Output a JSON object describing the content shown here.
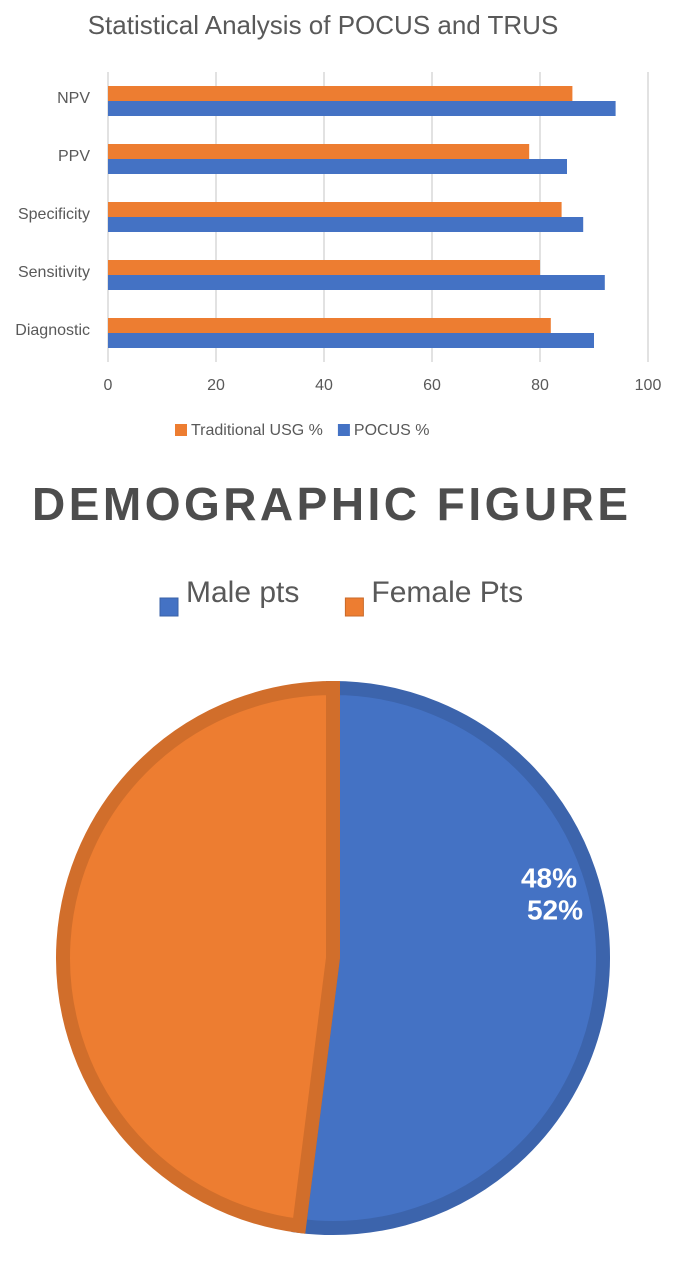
{
  "chart_data": [
    {
      "type": "bar",
      "orientation": "horizontal",
      "title": "Statistical Analysis of POCUS and TRUS",
      "categories": [
        "NPV",
        "PPV",
        "Specificity",
        "Sensitivity",
        "Diagnostic"
      ],
      "series": [
        {
          "name": "Traditional USG %",
          "color": "#ed7d31",
          "values": [
            86,
            78,
            84,
            80,
            82
          ]
        },
        {
          "name": "POCUS %",
          "color": "#4472c4",
          "values": [
            94,
            85,
            88,
            92,
            90
          ]
        }
      ],
      "xlim": [
        0,
        100
      ],
      "xticks": [
        0,
        20,
        40,
        60,
        80,
        100
      ],
      "grid": true,
      "legend": "bottom"
    },
    {
      "type": "pie",
      "title": "DEMOGRAPHIC FIGURE",
      "categories": [
        "Male pts",
        "Female Pts"
      ],
      "values": [
        52,
        48
      ],
      "value_labels": [
        "52%",
        "48%"
      ],
      "colors": [
        "#4472c4",
        "#ed7d31"
      ],
      "legend": "top"
    }
  ]
}
